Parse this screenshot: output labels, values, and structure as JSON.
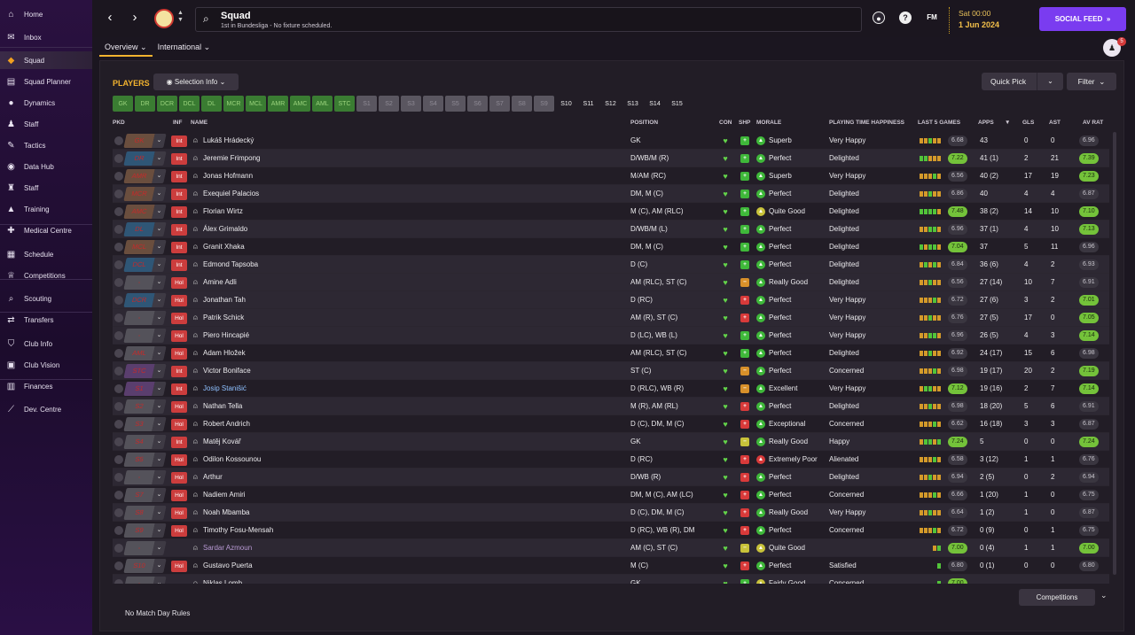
{
  "sidebar": [
    {
      "label": "Home",
      "icon": "home-icon",
      "glyph": "⌂"
    },
    {
      "label": "Inbox",
      "icon": "inbox-icon",
      "glyph": "✉"
    },
    {
      "label": "Squad",
      "icon": "shirt-icon",
      "glyph": "◆",
      "active": true
    },
    {
      "label": "Squad Planner",
      "icon": "planner-icon",
      "glyph": "▤"
    },
    {
      "label": "Dynamics",
      "icon": "dynamics-icon",
      "glyph": "●"
    },
    {
      "label": "Staff",
      "icon": "staff-icon",
      "glyph": "♟"
    },
    {
      "label": "Tactics",
      "icon": "tactics-icon",
      "glyph": "✎"
    },
    {
      "label": "Data Hub",
      "icon": "data-hub-icon",
      "glyph": "◉"
    },
    {
      "label": "Staff",
      "icon": "staff-icon",
      "glyph": "♜"
    },
    {
      "label": "Training",
      "icon": "training-icon",
      "glyph": "▲"
    },
    {
      "label": "Medical Centre",
      "icon": "medical-icon",
      "glyph": "✚"
    },
    {
      "label": "Schedule",
      "icon": "schedule-icon",
      "glyph": "▦"
    },
    {
      "label": "Competitions",
      "icon": "trophy-icon",
      "glyph": "♕"
    },
    {
      "label": "Scouting",
      "icon": "scouting-icon",
      "glyph": "⌕"
    },
    {
      "label": "Transfers",
      "icon": "transfers-icon",
      "glyph": "⇄"
    },
    {
      "label": "Club Info",
      "icon": "club-info-icon",
      "glyph": "⛉"
    },
    {
      "label": "Club Vision",
      "icon": "club-vision-icon",
      "glyph": "▣"
    },
    {
      "label": "Finances",
      "icon": "finances-icon",
      "glyph": "▥"
    },
    {
      "label": "Dev. Centre",
      "icon": "dev-centre-icon",
      "glyph": "⟋"
    }
  ],
  "header": {
    "title": "Squad",
    "subtitle": "1st in Bundesliga - No fixture scheduled.",
    "date_time": "Sat 00:00",
    "date_day": "1 Jun 2024",
    "social_label": "SOCIAL FEED",
    "fm_label": "FM",
    "help_label": "?",
    "notifications": "5"
  },
  "tabs": [
    {
      "label": "Overview ⌄",
      "active": true
    },
    {
      "label": "International ⌄",
      "active": false
    }
  ],
  "toolbar": {
    "players_label": "PLAYERS",
    "selection_info": "Selection Info",
    "quick_pick": "Quick Pick",
    "filter": "Filter",
    "competitions": "Competitions",
    "no_rules": "No Match Day Rules"
  },
  "position_filters": [
    {
      "label": "GK",
      "style": "green"
    },
    {
      "label": "DR",
      "style": "green"
    },
    {
      "label": "DCR",
      "style": "green"
    },
    {
      "label": "DCL",
      "style": "green"
    },
    {
      "label": "DL",
      "style": "green"
    },
    {
      "label": "MCR",
      "style": "green"
    },
    {
      "label": "MCL",
      "style": "green"
    },
    {
      "label": "AMR",
      "style": "green"
    },
    {
      "label": "AMC",
      "style": "green"
    },
    {
      "label": "AML",
      "style": "green"
    },
    {
      "label": "STC",
      "style": "green"
    },
    {
      "label": "S1",
      "style": "grey"
    },
    {
      "label": "S2",
      "style": "grey"
    },
    {
      "label": "S3",
      "style": "grey"
    },
    {
      "label": "S4",
      "style": "grey"
    },
    {
      "label": "S5",
      "style": "grey"
    },
    {
      "label": "S6",
      "style": "grey"
    },
    {
      "label": "S7",
      "style": "grey"
    },
    {
      "label": "S8",
      "style": "grey"
    },
    {
      "label": "S9",
      "style": "grey"
    },
    {
      "label": "S10",
      "style": "plain"
    },
    {
      "label": "S11",
      "style": "plain"
    },
    {
      "label": "S12",
      "style": "plain"
    },
    {
      "label": "S13",
      "style": "plain"
    },
    {
      "label": "S14",
      "style": "plain"
    },
    {
      "label": "S15",
      "style": "plain"
    }
  ],
  "columns": {
    "pkd": "PKD",
    "inf": "INF",
    "name": "NAME",
    "position": "POSITION",
    "con": "CON",
    "shp": "SHP",
    "morale": "MORALE",
    "happiness": "PLAYING TIME HAPPINESS",
    "last5": "LAST 5 GAMES",
    "apps": "APPS",
    "gls": "GLS",
    "ast": "AST",
    "avrat": "AV RAT"
  },
  "colors": {
    "accent": "#f2b32f",
    "social": "#7a3cf0",
    "injury": "#cc3d3d",
    "form_green": "#52c43a",
    "form_orange": "#d49a2a",
    "rating_green": "#74c23a"
  },
  "players": [
    {
      "sel": "GK",
      "selc": "brown",
      "inf": "Int",
      "name": "Lukáš Hrádecký",
      "pos": "GK",
      "con": "#63d44a",
      "shp": "+",
      "shpc": "#3fb83a",
      "mor": "Superb",
      "morc": "#3fb83a",
      "hap": "Very Happy",
      "form": "oogoo",
      "last5": "6.68",
      "l5g": false,
      "apps": "43",
      "gls": "0",
      "ast": "0",
      "rat": "6.96",
      "ratg": false
    },
    {
      "sel": "DR",
      "selc": "blue",
      "inf": "Int",
      "name": "Jeremie Frimpong",
      "pos": "D/WB/M (R)",
      "con": "#63d44a",
      "shp": "+",
      "shpc": "#3fb83a",
      "mor": "Perfect",
      "morc": "#3fb83a",
      "hap": "Delighted",
      "form": "ggooo",
      "last5": "7.22",
      "l5g": true,
      "apps": "41 (1)",
      "gls": "2",
      "ast": "21",
      "rat": "7.39",
      "ratg": true
    },
    {
      "sel": "AMR",
      "selc": "brown",
      "inf": "Int",
      "name": "Jonas Hofmann",
      "pos": "M/AM (RC)",
      "con": "#63d44a",
      "shp": "+",
      "shpc": "#3fb83a",
      "mor": "Superb",
      "morc": "#3fb83a",
      "hap": "Very Happy",
      "form": "ooogo",
      "last5": "6.56",
      "l5g": false,
      "apps": "40 (2)",
      "gls": "17",
      "ast": "19",
      "rat": "7.23",
      "ratg": true
    },
    {
      "sel": "MCR",
      "selc": "brown",
      "inf": "Int",
      "name": "Exequiel Palacios",
      "pos": "DM, M (C)",
      "con": "#63d44a",
      "shp": "+",
      "shpc": "#3fb83a",
      "mor": "Perfect",
      "morc": "#3fb83a",
      "hap": "Delighted",
      "form": "oogoo",
      "last5": "6.86",
      "l5g": false,
      "apps": "40",
      "gls": "4",
      "ast": "4",
      "rat": "6.87",
      "ratg": false
    },
    {
      "sel": "AMC",
      "selc": "brown",
      "inf": "Int",
      "name": "Florian Wirtz",
      "pos": "M (C), AM (RLC)",
      "con": "#63d44a",
      "shp": "+",
      "shpc": "#3fb83a",
      "mor": "Quite Good",
      "morc": "#c8c23a",
      "hap": "Delighted",
      "form": "ggggo",
      "last5": "7.48",
      "l5g": true,
      "apps": "38 (2)",
      "gls": "14",
      "ast": "10",
      "rat": "7.10",
      "ratg": true
    },
    {
      "sel": "DL",
      "selc": "blue",
      "inf": "Int",
      "name": "Álex Grimaldo",
      "pos": "D/WB/M (L)",
      "con": "#63d44a",
      "shp": "+",
      "shpc": "#3fb83a",
      "mor": "Perfect",
      "morc": "#3fb83a",
      "hap": "Delighted",
      "form": "ooggo",
      "last5": "6.96",
      "l5g": false,
      "apps": "37 (1)",
      "gls": "4",
      "ast": "10",
      "rat": "7.13",
      "ratg": true
    },
    {
      "sel": "MCL",
      "selc": "brown",
      "inf": "Int",
      "name": "Granit Xhaka",
      "pos": "DM, M (C)",
      "con": "#63d44a",
      "shp": "+",
      "shpc": "#3fb83a",
      "mor": "Perfect",
      "morc": "#3fb83a",
      "hap": "Delighted",
      "form": "goggo",
      "last5": "7.04",
      "l5g": true,
      "apps": "37",
      "gls": "5",
      "ast": "11",
      "rat": "6.96",
      "ratg": false
    },
    {
      "sel": "DCL",
      "selc": "blue",
      "inf": "Int",
      "name": "Edmond Tapsoba",
      "pos": "D (C)",
      "con": "#63d44a",
      "shp": "+",
      "shpc": "#3fb83a",
      "mor": "Perfect",
      "morc": "#3fb83a",
      "hap": "Delighted",
      "form": "ogogo",
      "last5": "6.84",
      "l5g": false,
      "apps": "36 (6)",
      "gls": "4",
      "ast": "2",
      "rat": "6.93",
      "ratg": false
    },
    {
      "sel": "-",
      "selc": "dash",
      "inf": "Hol",
      "name": "Amine Adli",
      "pos": "AM (RLC), ST (C)",
      "con": "#63d44a",
      "shp": "−",
      "shpc": "#d8902a",
      "mor": "Really Good",
      "morc": "#3fb83a",
      "hap": "Delighted",
      "form": "oogoo",
      "last5": "6.56",
      "l5g": false,
      "apps": "27 (14)",
      "gls": "10",
      "ast": "7",
      "rat": "6.91",
      "ratg": false
    },
    {
      "sel": "DCR",
      "selc": "blue",
      "inf": "Hol",
      "name": "Jonathan Tah",
      "pos": "D (RC)",
      "con": "#63d44a",
      "shp": "+",
      "shpc": "#d83a3a",
      "mor": "Perfect",
      "morc": "#3fb83a",
      "hap": "Very Happy",
      "form": "ooogo",
      "last5": "6.72",
      "l5g": false,
      "apps": "27 (6)",
      "gls": "3",
      "ast": "2",
      "rat": "7.01",
      "ratg": true
    },
    {
      "sel": "-",
      "selc": "dash",
      "inf": "Hol",
      "name": "Patrik Schick",
      "pos": "AM (R), ST (C)",
      "con": "#63d44a",
      "shp": "+",
      "shpc": "#d83a3a",
      "mor": "Perfect",
      "morc": "#3fb83a",
      "hap": "Very Happy",
      "form": "oogoo",
      "last5": "6.76",
      "l5g": false,
      "apps": "27 (5)",
      "gls": "17",
      "ast": "0",
      "rat": "7.05",
      "ratg": true
    },
    {
      "sel": "-",
      "selc": "dash",
      "inf": "Hol",
      "name": "Piero Hincapié",
      "pos": "D (LC), WB (L)",
      "con": "#63d44a",
      "shp": "+",
      "shpc": "#3fb83a",
      "mor": "Perfect",
      "morc": "#3fb83a",
      "hap": "Very Happy",
      "form": "ooggo",
      "last5": "6.96",
      "l5g": false,
      "apps": "26 (5)",
      "gls": "4",
      "ast": "3",
      "rat": "7.14",
      "ratg": true
    },
    {
      "sel": "AML",
      "selc": "grey",
      "inf": "Hol",
      "name": "Adam Hložek",
      "pos": "AM (RLC), ST (C)",
      "con": "#63d44a",
      "shp": "+",
      "shpc": "#3fb83a",
      "mor": "Perfect",
      "morc": "#3fb83a",
      "hap": "Delighted",
      "form": "oogoo",
      "last5": "6.92",
      "l5g": false,
      "apps": "24 (17)",
      "gls": "15",
      "ast": "6",
      "rat": "6.98",
      "ratg": false
    },
    {
      "sel": "STC",
      "selc": "purple",
      "inf": "Int",
      "name": "Victor Boniface",
      "pos": "ST (C)",
      "con": "#63d44a",
      "shp": "−",
      "shpc": "#d8902a",
      "mor": "Perfect",
      "morc": "#3fb83a",
      "hap": "Concerned",
      "form": "ooogo",
      "last5": "6.98",
      "l5g": false,
      "apps": "19 (17)",
      "gls": "20",
      "ast": "2",
      "rat": "7.19",
      "ratg": true
    },
    {
      "sel": "S1",
      "selc": "purple",
      "inf": "Int",
      "name": "Josip Stanišić",
      "pos": "D (RLC), WB (R)",
      "con": "#63d44a",
      "shp": "−",
      "shpc": "#d8902a",
      "mor": "Excellent",
      "morc": "#3fb83a",
      "hap": "Very Happy",
      "form": "oggoo",
      "last5": "7.12",
      "l5g": true,
      "apps": "19 (16)",
      "gls": "2",
      "ast": "7",
      "rat": "7.14",
      "ratg": true,
      "link": true
    },
    {
      "sel": "S2",
      "selc": "grey",
      "inf": "Hol",
      "name": "Nathan Tella",
      "pos": "M (R), AM (RL)",
      "con": "#63d44a",
      "shp": "+",
      "shpc": "#d83a3a",
      "mor": "Perfect",
      "morc": "#3fb83a",
      "hap": "Delighted",
      "form": "oogoo",
      "last5": "6.98",
      "l5g": false,
      "apps": "18 (20)",
      "gls": "5",
      "ast": "6",
      "rat": "6.91",
      "ratg": false
    },
    {
      "sel": "S3",
      "selc": "grey",
      "inf": "Hol",
      "name": "Robert Andrich",
      "pos": "D (C), DM, M (C)",
      "con": "#63d44a",
      "shp": "+",
      "shpc": "#d83a3a",
      "mor": "Exceptional",
      "morc": "#3fb83a",
      "hap": "Concerned",
      "form": "ooogo",
      "last5": "6.62",
      "l5g": false,
      "apps": "16 (18)",
      "gls": "3",
      "ast": "3",
      "rat": "6.87",
      "ratg": false
    },
    {
      "sel": "S4",
      "selc": "grey",
      "inf": "Int",
      "name": "Matěj Kovář",
      "pos": "GK",
      "con": "#63d44a",
      "shp": "−",
      "shpc": "#c8c23a",
      "mor": "Really Good",
      "morc": "#3fb83a",
      "hap": "Happy",
      "form": "oggog",
      "last5": "7.24",
      "l5g": true,
      "apps": "5",
      "gls": "0",
      "ast": "0",
      "rat": "7.24",
      "ratg": true
    },
    {
      "sel": "S5",
      "selc": "grey",
      "inf": "Hol",
      "name": "Odilon Kossounou",
      "pos": "D (RC)",
      "con": "#63d44a",
      "shp": "+",
      "shpc": "#d83a3a",
      "mor": "Extremely Poor",
      "morc": "#d83a3a",
      "hap": "Alienated",
      "form": "ooogo",
      "last5": "6.58",
      "l5g": false,
      "apps": "3 (12)",
      "gls": "1",
      "ast": "1",
      "rat": "6.76",
      "ratg": false
    },
    {
      "sel": "-",
      "selc": "dash",
      "inf": "Hol",
      "name": "Arthur",
      "pos": "D/WB (R)",
      "con": "#63d44a",
      "shp": "+",
      "shpc": "#d83a3a",
      "mor": "Perfect",
      "morc": "#3fb83a",
      "hap": "Delighted",
      "form": "oogoo",
      "last5": "6.94",
      "l5g": false,
      "apps": "2 (5)",
      "gls": "0",
      "ast": "2",
      "rat": "6.94",
      "ratg": false
    },
    {
      "sel": "S7",
      "selc": "grey",
      "inf": "Hol",
      "name": "Nadiem Amiri",
      "pos": "DM, M (C), AM (LC)",
      "con": "#63d44a",
      "shp": "+",
      "shpc": "#d83a3a",
      "mor": "Perfect",
      "morc": "#3fb83a",
      "hap": "Concerned",
      "form": "ooogo",
      "last5": "6.66",
      "l5g": false,
      "apps": "1 (20)",
      "gls": "1",
      "ast": "0",
      "rat": "6.75",
      "ratg": false
    },
    {
      "sel": "S8",
      "selc": "grey",
      "inf": "Hol",
      "name": "Noah Mbamba",
      "pos": "D (C), DM, M (C)",
      "con": "#63d44a",
      "shp": "+",
      "shpc": "#d83a3a",
      "mor": "Really Good",
      "morc": "#3fb83a",
      "hap": "Very Happy",
      "form": "oogoo",
      "last5": "6.64",
      "l5g": false,
      "apps": "1 (2)",
      "gls": "1",
      "ast": "0",
      "rat": "6.87",
      "ratg": false
    },
    {
      "sel": "S9",
      "selc": "grey",
      "inf": "Hol",
      "name": "Timothy Fosu-Mensah",
      "pos": "D (RC), WB (R), DM",
      "con": "#63d44a",
      "shp": "+",
      "shpc": "#d83a3a",
      "mor": "Perfect",
      "morc": "#3fb83a",
      "hap": "Concerned",
      "form": "ooogo",
      "last5": "6.72",
      "l5g": false,
      "apps": "0 (9)",
      "gls": "0",
      "ast": "1",
      "rat": "6.75",
      "ratg": false
    },
    {
      "sel": "-",
      "selc": "dash",
      "inf": "",
      "name": "Sardar Azmoun",
      "pos": "AM (C), ST (C)",
      "con": "#63d44a",
      "shp": "−",
      "shpc": "#c8c23a",
      "mor": "Quite Good",
      "morc": "#c8c23a",
      "hap": "",
      "form": "og",
      "last5": "7.00",
      "l5g": true,
      "apps": "0 (4)",
      "gls": "1",
      "ast": "1",
      "rat": "7.00",
      "ratg": true,
      "faded": true
    },
    {
      "sel": "S10",
      "selc": "grey",
      "inf": "Hol",
      "name": "Gustavo Puerta",
      "pos": "M (C)",
      "con": "#63d44a",
      "shp": "+",
      "shpc": "#d83a3a",
      "mor": "Perfect",
      "morc": "#3fb83a",
      "hap": "Satisfied",
      "form": "g",
      "last5": "6.80",
      "l5g": false,
      "apps": "0 (1)",
      "gls": "0",
      "ast": "0",
      "rat": "6.80",
      "ratg": false
    },
    {
      "sel": "-",
      "selc": "dash",
      "inf": "",
      "name": "Niklas Lomb",
      "pos": "GK",
      "con": "#63d44a",
      "shp": "+",
      "shpc": "#3fb83a",
      "mor": "Fairly Good",
      "morc": "#c8c23a",
      "hap": "Concerned",
      "form": "g",
      "last5": "7.00",
      "l5g": true,
      "apps": "",
      "gls": "",
      "ast": "",
      "rat": "",
      "ratg": false
    }
  ]
}
